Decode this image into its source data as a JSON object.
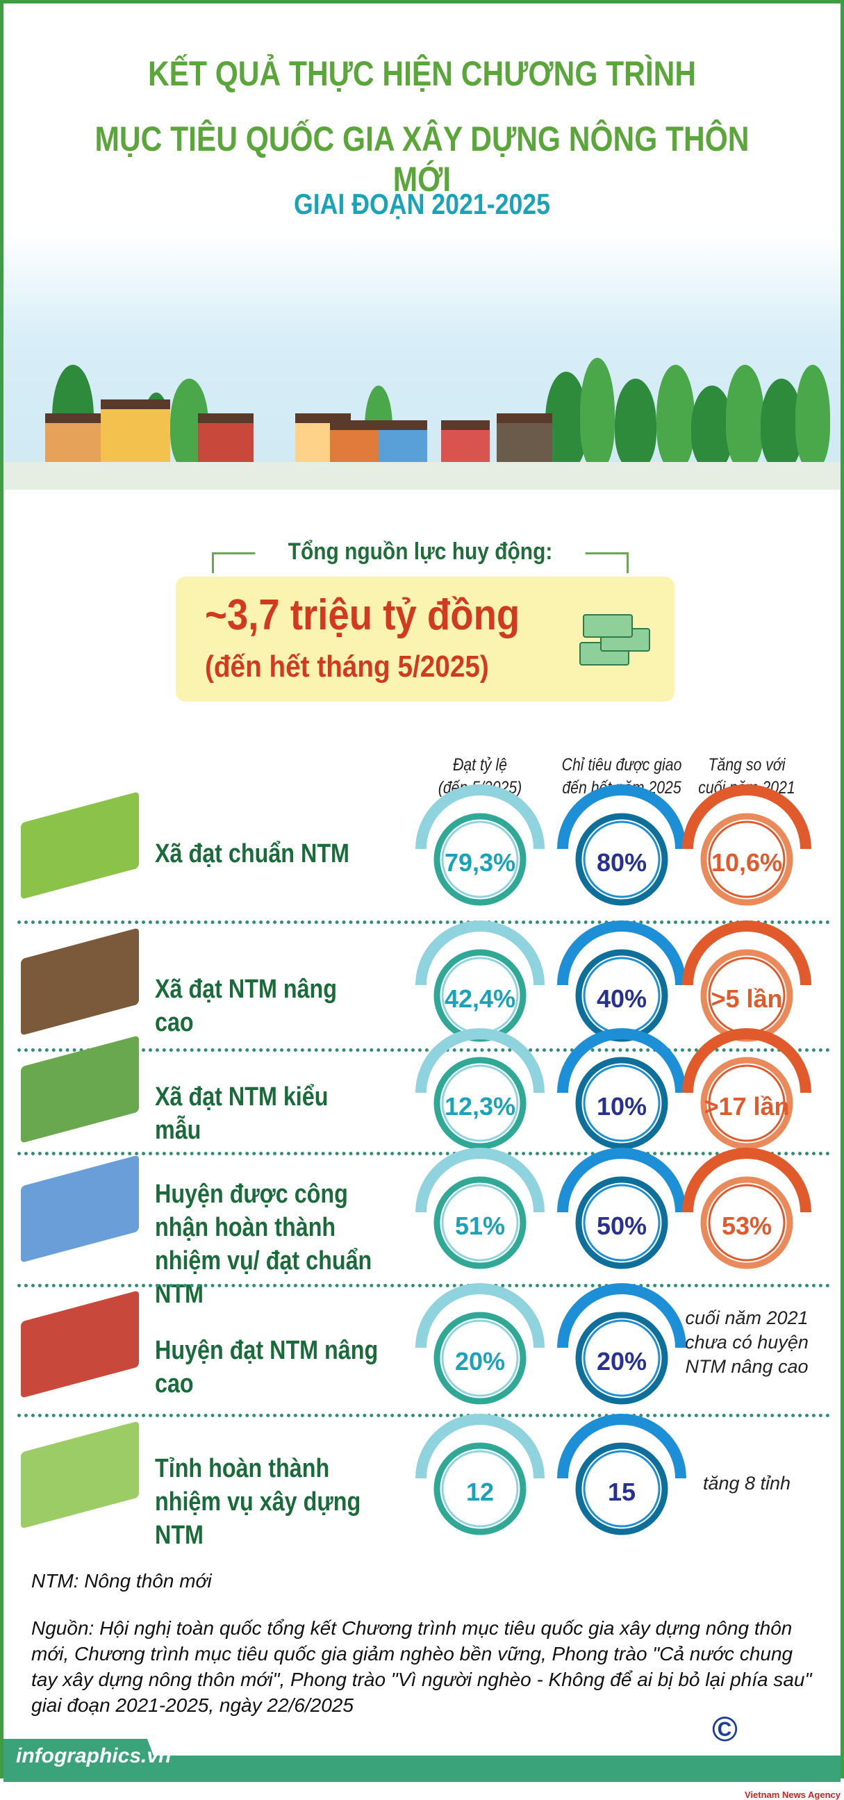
{
  "header": {
    "title_line1": "KẾT QUẢ THỰC HIỆN CHƯƠNG TRÌNH",
    "title_line2": "MỤC TIÊU QUỐC GIA XÂY DỰNG NÔNG THÔN MỚI",
    "period": "GIAI ĐOẠN 2021-2025"
  },
  "resources": {
    "label": "Tổng nguồn lực huy động:",
    "amount": "~3,7 triệu tỷ đồng",
    "note": "(đến hết tháng 5/2025)",
    "icon": "money-stack-icon"
  },
  "columns": [
    {
      "line1": "Đạt tỷ lệ",
      "line2": "(đến 5/2025)",
      "color": "#2fa896"
    },
    {
      "line1": "Chỉ tiêu được giao",
      "line2": "đến hết năm 2025",
      "color": "#1c8fd6"
    },
    {
      "line1": "Tăng so với",
      "line2": "cuối năm 2021",
      "color": "#e05a2b"
    }
  ],
  "rows": [
    {
      "label": "Xã đạt chuẩn NTM",
      "achieved": "79,3%",
      "target": "80%",
      "increase": "10,6%"
    },
    {
      "label": "Xã đạt NTM nâng cao",
      "achieved": "42,4%",
      "target": "40%",
      "increase": ">5 lần"
    },
    {
      "label": "Xã đạt NTM kiểu mẫu",
      "achieved": "12,3%",
      "target": "10%",
      "increase": ">17 lần"
    },
    {
      "label": "Huyện được công nhận hoàn thành nhiệm vụ/ đạt chuẩn NTM",
      "achieved": "51%",
      "target": "50%",
      "increase": "53%"
    },
    {
      "label": "Huyện đạt NTM nâng cao",
      "achieved": "20%",
      "target": "20%",
      "increase_note": "cuối năm 2021 chưa có huyện NTM nâng cao"
    },
    {
      "label": "Tỉnh hoàn thành nhiệm vụ xây dựng NTM",
      "achieved": "12",
      "target": "15",
      "increase_note": "tăng 8 tỉnh"
    }
  ],
  "footer": {
    "abbr": "NTM: Nông thôn mới",
    "source": "Nguồn: Hội nghị toàn quốc tổng kết Chương trình mục tiêu quốc gia xây dựng nông thôn mới, Chương trình mục tiêu quốc gia giảm nghèo bền vững, Phong trào \"Cả nước chung tay xây dựng nông thôn mới\", Phong trào \"Vì người nghèo - Không để ai bị bỏ lại phía sau\" giai đoạn 2021-2025, ngày 22/6/2025",
    "site": "infographics.vn",
    "logo": "© TTXVN",
    "logo_sub": "Vietnam News Agency"
  }
}
